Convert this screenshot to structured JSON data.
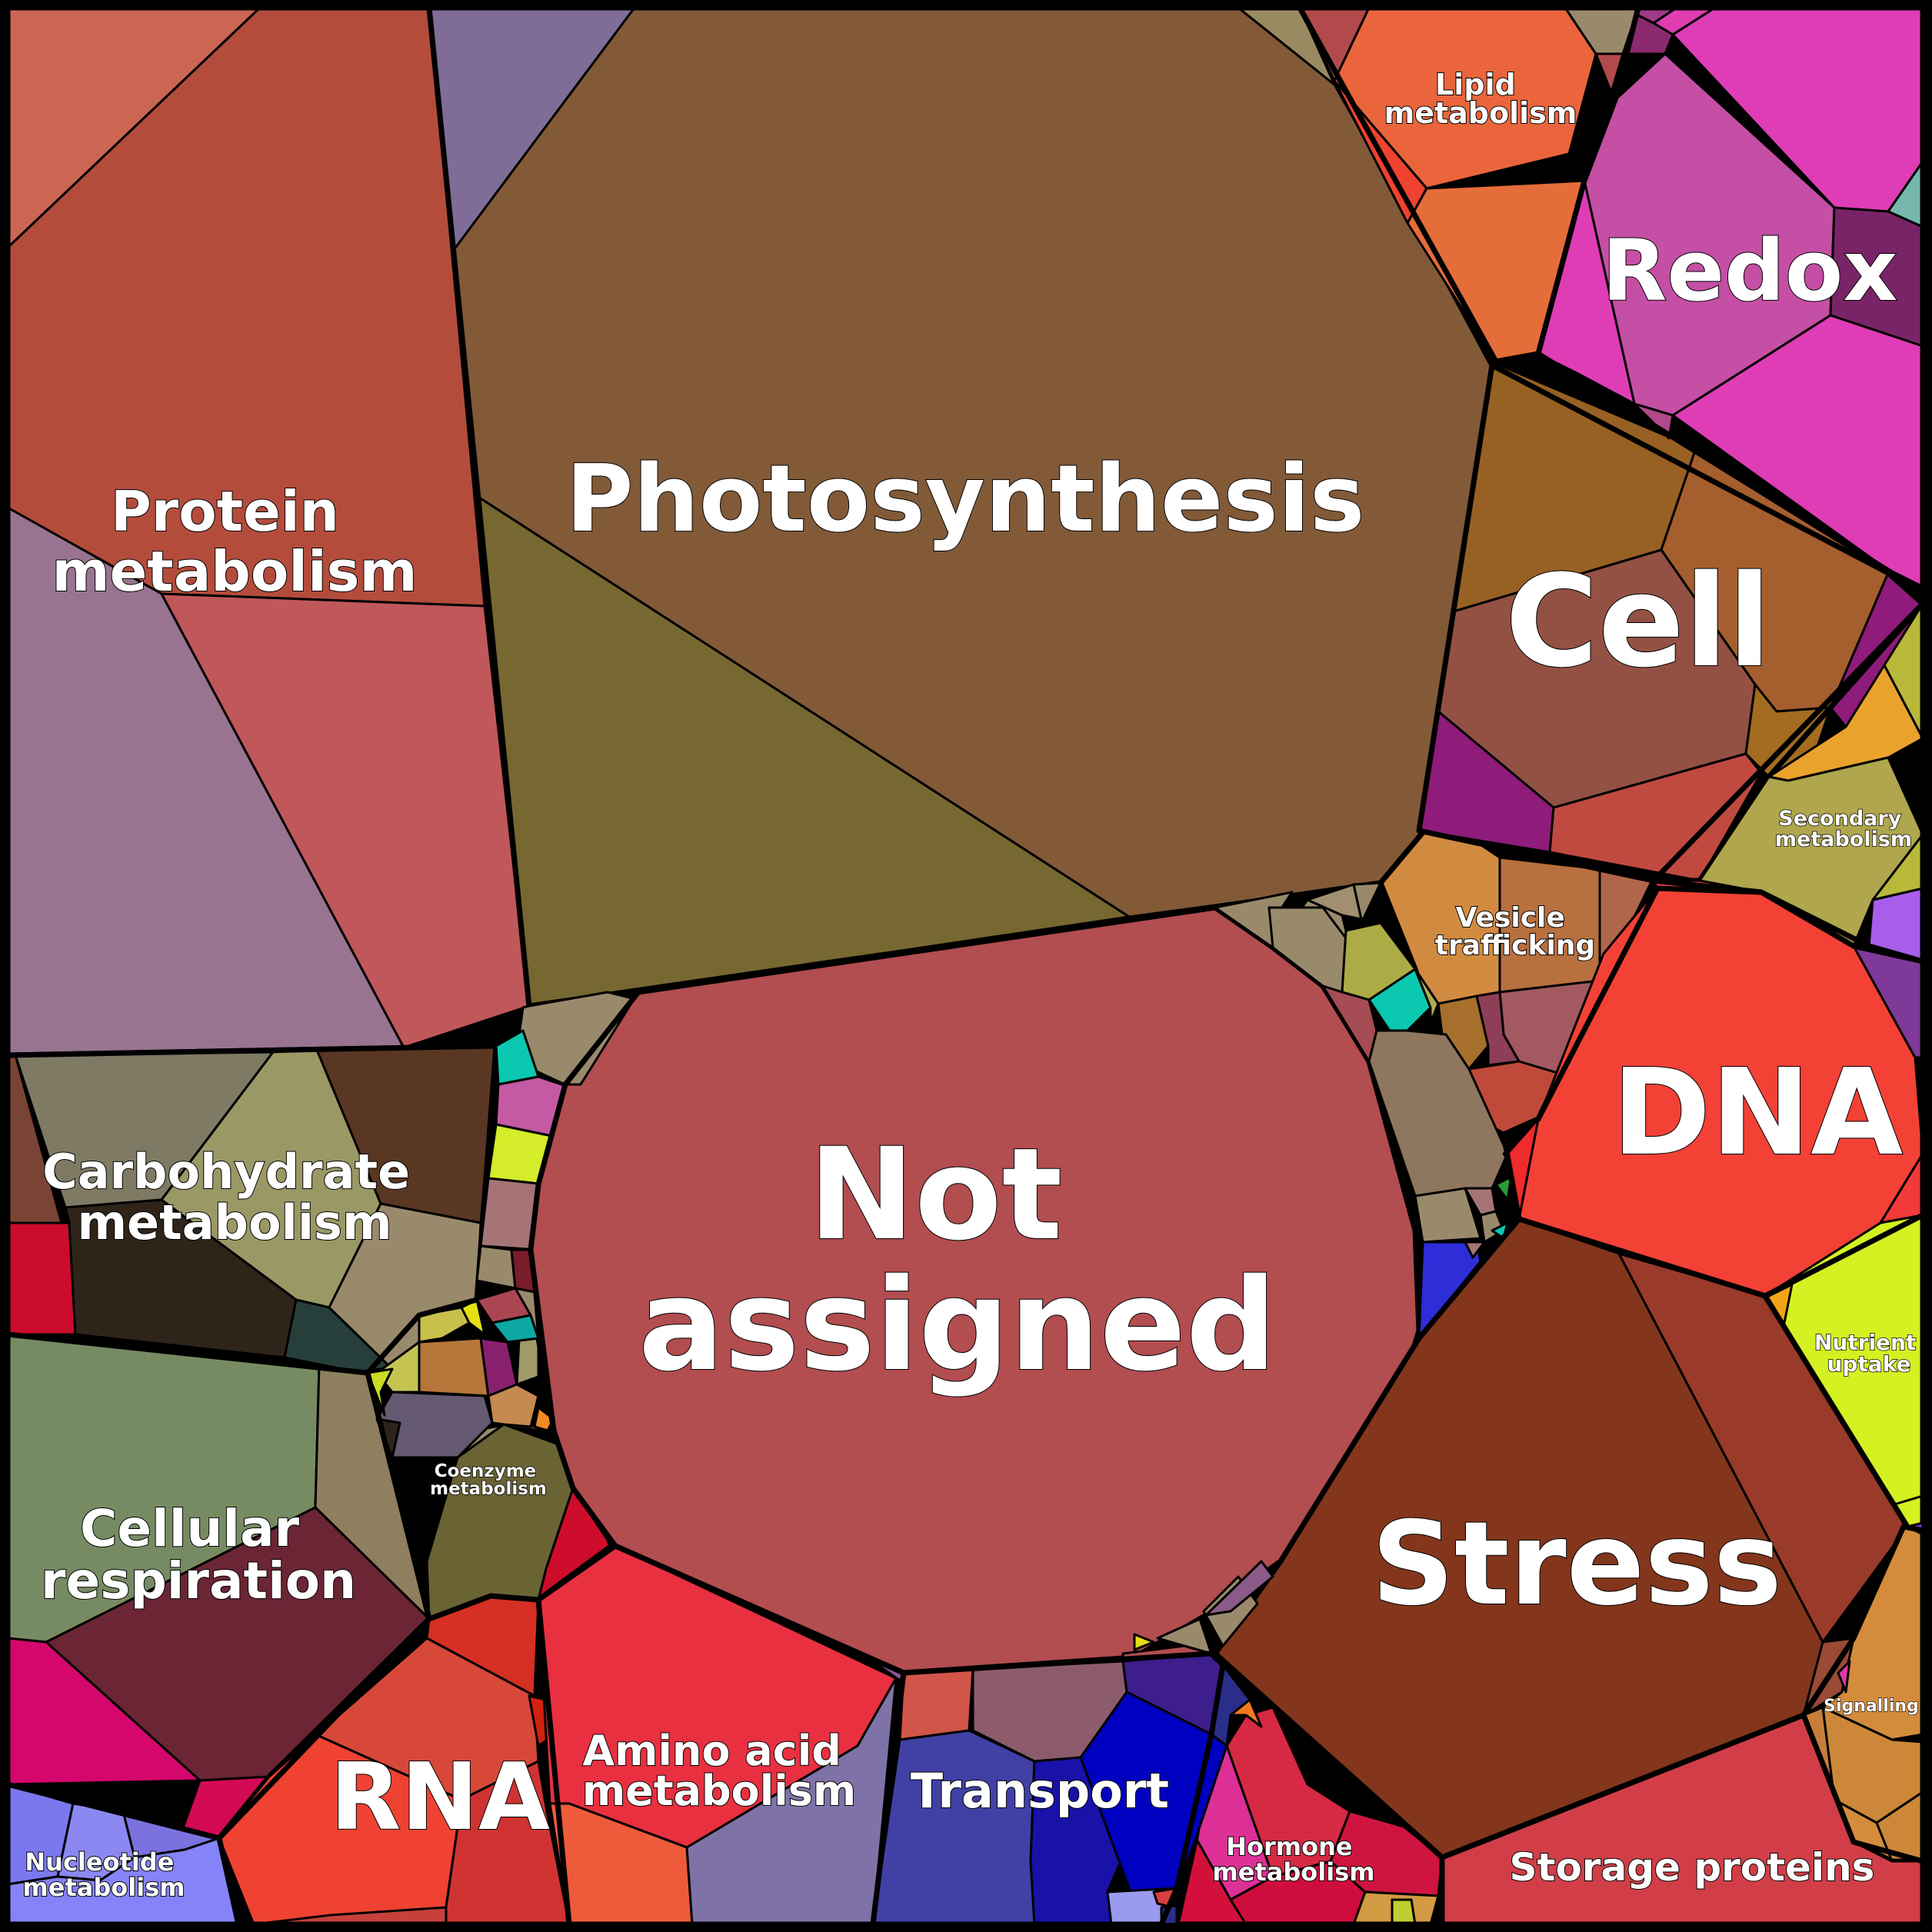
{
  "labels": {
    "photosynthesis": "Photosynthesis",
    "protein_1": "Protein",
    "protein_2": "metabolism",
    "carb_1": "Carbohydrate",
    "carb_2": "metabolism",
    "resp_1": "Cellular",
    "resp_2": "respiration",
    "nucleotide_1": "Nucleotide",
    "nucleotide_2": "metabolism",
    "rna": "RNA",
    "amino_1": "Amino acid",
    "amino_2": "metabolism",
    "transport": "Transport",
    "hormone_1": "Hormone",
    "hormone_2": "metabolism",
    "storage": "Storage proteins",
    "stress": "Stress",
    "not_assigned_1": "Not",
    "not_assigned_2": "assigned",
    "coenzyme_1": "Coenzyme",
    "coenzyme_2": "metabolism",
    "vesicle_1": "Vesicle",
    "vesicle_2": "trafficking",
    "cell": "Cell",
    "dna": "DNA",
    "redox": "Redox",
    "lipid_1": "Lipid",
    "lipid_2": "metabolism",
    "secondary_1": "Secondary",
    "secondary_2": "metabolism",
    "nutrient_1": "Nutrient",
    "nutrient_2": "uptake",
    "signalling": "Signalling"
  },
  "colors": {
    "photosynthesis": "#825a38",
    "photosynthesis_sub": "#766830",
    "protein": "#b44c3c",
    "not_assigned": "#b24d50",
    "stress": "#83361c",
    "dna": "#f34136",
    "cell": "#a55e2e",
    "redox": "#c44fa4",
    "rna": "#d94336",
    "transport": "#4140a5",
    "storage": "#d13e48",
    "amino": "#e83040",
    "nutrient": "#d4f122",
    "resp": "#778b63",
    "carb": "#9a9865"
  }
}
